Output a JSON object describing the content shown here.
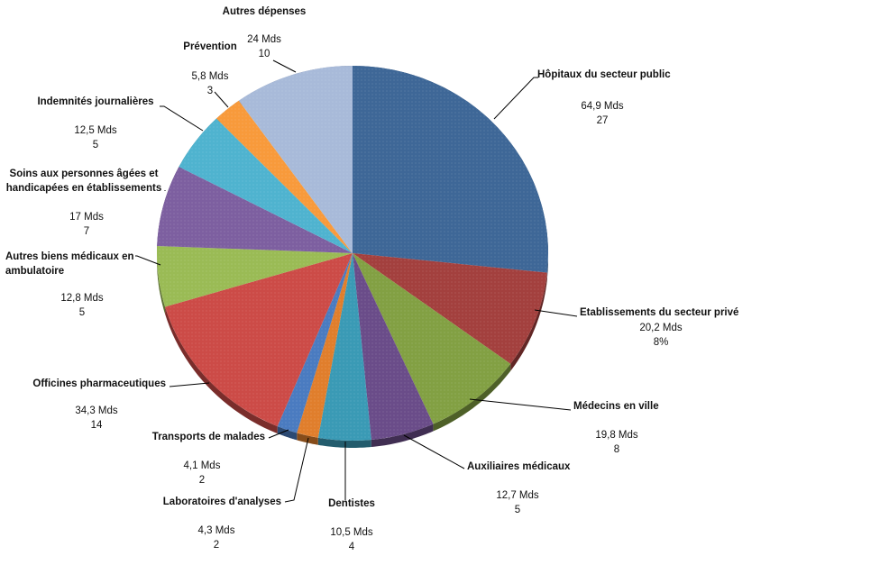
{
  "chart_data": {
    "type": "pie",
    "title": "",
    "slices": [
      {
        "name": "Hôpitaux du secteur public",
        "amount": "64,9 Mds",
        "pct": "27",
        "value": 27,
        "color": "#3E6797"
      },
      {
        "name": "Etablissements du secteur privé",
        "amount": "20,2 Mds",
        "pct": "8%",
        "value": 8.5,
        "color": "#A3403E"
      },
      {
        "name": "Médecins en ville",
        "amount": "19,8 Mds",
        "pct": "8",
        "value": 8.3,
        "color": "#82A043"
      },
      {
        "name": "Auxiliaires médicaux",
        "amount": "12,7 Mds",
        "pct": "5",
        "value": 5.3,
        "color": "#6A4C89"
      },
      {
        "name": "Dentistes",
        "amount": "10,5 Mds",
        "pct": "4",
        "value": 4.4,
        "color": "#3A9AB5"
      },
      {
        "name": "Laboratoires d'analyses",
        "amount": "4,3 Mds",
        "pct": "2",
        "value": 1.8,
        "color": "#E07E2C"
      },
      {
        "name": "Transports de malades",
        "amount": "4,1 Mds",
        "pct": "2",
        "value": 1.7,
        "color": "#4A7BC0"
      },
      {
        "name": "Officines pharmaceutiques",
        "amount": "34,3 Mds",
        "pct": "14",
        "value": 14.3,
        "color": "#CC4B47"
      },
      {
        "name": "Autres biens médicaux en ambulatoire",
        "amount": "12,8 Mds",
        "pct": "5",
        "value": 5.3,
        "color": "#9ABB55"
      },
      {
        "name": "Soins aux personnes âgées et handicapées en établissements",
        "amount": "17 Mds",
        "pct": "7",
        "value": 7.1,
        "color": "#7D5FA0"
      },
      {
        "name": "Indemnités journalières",
        "amount": "12,5 Mds",
        "pct": "5",
        "value": 5.2,
        "color": "#4FB3CF"
      },
      {
        "name": "Prévention",
        "amount": "5,8 Mds",
        "pct": "3",
        "value": 2.4,
        "color": "#F89A3B"
      },
      {
        "name": "Autres dépenses",
        "amount": "24 Mds",
        "pct": "10",
        "value": 10,
        "color": "#A8BAD9"
      }
    ],
    "start_angle": "12 o'clock",
    "direction": "clockwise",
    "legend": "none"
  }
}
